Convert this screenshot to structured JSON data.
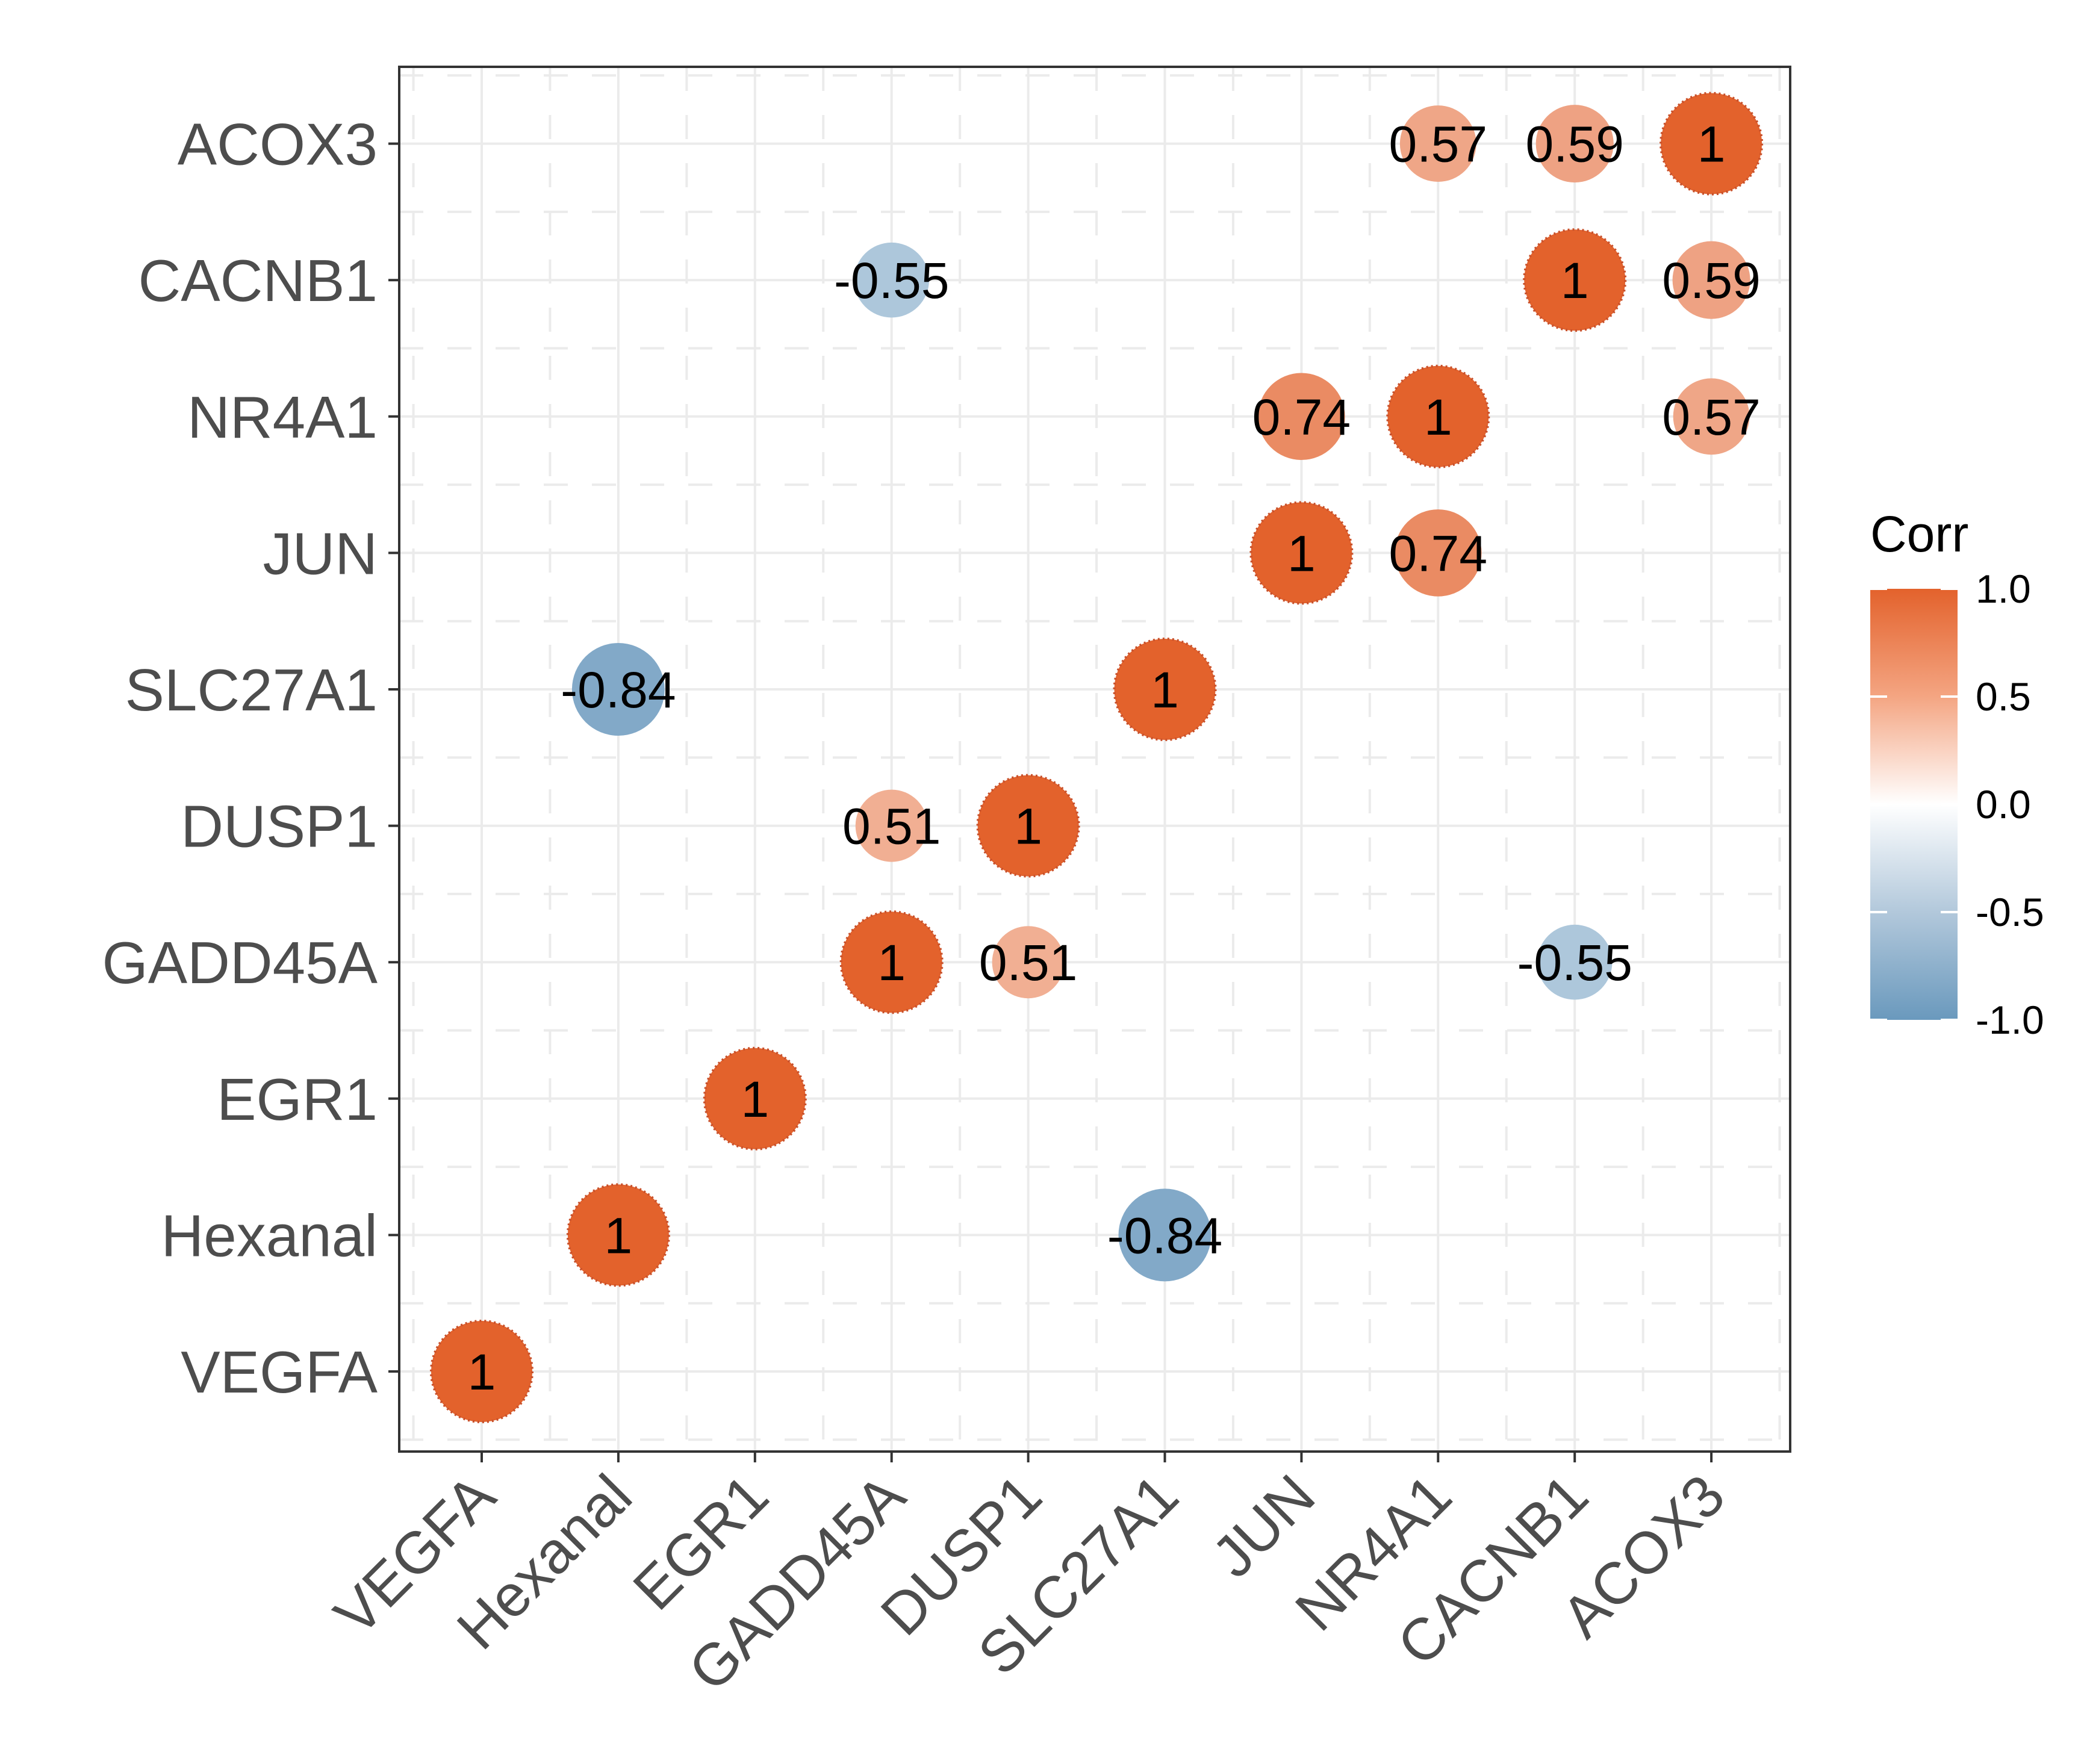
{
  "chart_data": {
    "type": "correlogram",
    "title": "",
    "variables": [
      "VEGFA",
      "Hexanal",
      "EGR1",
      "GADD45A",
      "DUSP1",
      "SLC27A1",
      "JUN",
      "NR4A1",
      "CACNB1",
      "ACOX3"
    ],
    "x_categories": [
      "VEGFA",
      "Hexanal",
      "EGR1",
      "GADD45A",
      "DUSP1",
      "SLC27A1",
      "JUN",
      "NR4A1",
      "CACNB1",
      "ACOX3"
    ],
    "y_categories": [
      "VEGFA",
      "Hexanal",
      "EGR1",
      "GADD45A",
      "DUSP1",
      "SLC27A1",
      "JUN",
      "NR4A1",
      "CACNB1",
      "ACOX3"
    ],
    "cells": [
      {
        "x": "VEGFA",
        "y": "VEGFA",
        "value": 1,
        "label": "1"
      },
      {
        "x": "Hexanal",
        "y": "Hexanal",
        "value": 1,
        "label": "1"
      },
      {
        "x": "SLC27A1",
        "y": "Hexanal",
        "value": -0.84,
        "label": "-0.84"
      },
      {
        "x": "EGR1",
        "y": "EGR1",
        "value": 1,
        "label": "1"
      },
      {
        "x": "GADD45A",
        "y": "GADD45A",
        "value": 1,
        "label": "1"
      },
      {
        "x": "DUSP1",
        "y": "GADD45A",
        "value": 0.51,
        "label": "0.51"
      },
      {
        "x": "CACNB1",
        "y": "GADD45A",
        "value": -0.55,
        "label": "-0.55"
      },
      {
        "x": "GADD45A",
        "y": "DUSP1",
        "value": 0.51,
        "label": "0.51"
      },
      {
        "x": "DUSP1",
        "y": "DUSP1",
        "value": 1,
        "label": "1"
      },
      {
        "x": "Hexanal",
        "y": "SLC27A1",
        "value": -0.84,
        "label": "-0.84"
      },
      {
        "x": "SLC27A1",
        "y": "SLC27A1",
        "value": 1,
        "label": "1"
      },
      {
        "x": "JUN",
        "y": "JUN",
        "value": 1,
        "label": "1"
      },
      {
        "x": "NR4A1",
        "y": "JUN",
        "value": 0.74,
        "label": "0.74"
      },
      {
        "x": "JUN",
        "y": "NR4A1",
        "value": 0.74,
        "label": "0.74"
      },
      {
        "x": "NR4A1",
        "y": "NR4A1",
        "value": 1,
        "label": "1"
      },
      {
        "x": "ACOX3",
        "y": "NR4A1",
        "value": 0.57,
        "label": "0.57"
      },
      {
        "x": "GADD45A",
        "y": "CACNB1",
        "value": -0.55,
        "label": "-0.55"
      },
      {
        "x": "CACNB1",
        "y": "CACNB1",
        "value": 1,
        "label": "1"
      },
      {
        "x": "ACOX3",
        "y": "CACNB1",
        "value": 0.59,
        "label": "0.59"
      },
      {
        "x": "NR4A1",
        "y": "ACOX3",
        "value": 0.57,
        "label": "0.57"
      },
      {
        "x": "CACNB1",
        "y": "ACOX3",
        "value": 0.59,
        "label": "0.59"
      },
      {
        "x": "ACOX3",
        "y": "ACOX3",
        "value": 1,
        "label": "1"
      }
    ],
    "legend": {
      "title": "Corr",
      "range": [
        -1.0,
        1.0
      ],
      "ticks": [
        "1.0",
        "0.5",
        "0.0",
        "-0.5",
        "-1.0"
      ],
      "tick_values": [
        1.0,
        0.5,
        0.0,
        -0.5,
        -1.0
      ],
      "position": "right"
    },
    "colors": {
      "high": "#e3622c",
      "mid": "#ffffff",
      "low": "#6a99bd",
      "grid": "#ebebeb",
      "panel_border": "#333333"
    },
    "grid": true
  }
}
